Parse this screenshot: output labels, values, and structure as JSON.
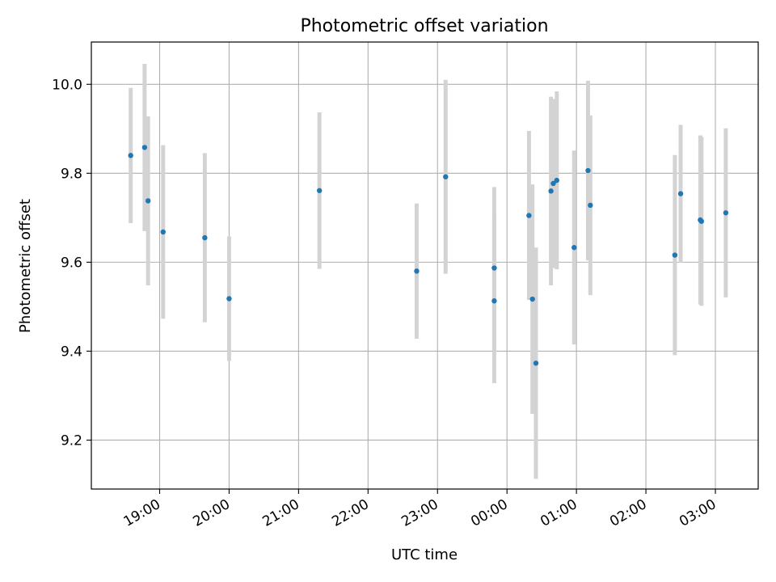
{
  "chart_data": {
    "type": "scatter",
    "title": "Photometric offset variation",
    "xlabel": "UTC time",
    "ylabel": "Photometric offset",
    "x_tick_labels": [
      "19:00",
      "20:00",
      "21:00",
      "22:00",
      "23:00",
      "00:00",
      "01:00",
      "02:00",
      "03:00"
    ],
    "y_tick_labels": [
      "9.2",
      "9.4",
      "9.6",
      "9.8",
      "10.0"
    ],
    "y_ticks": [
      9.2,
      9.4,
      9.6,
      9.8,
      10.0
    ],
    "xlim": [
      "18:01",
      "03:37"
    ],
    "ylim": [
      9.09,
      10.095
    ],
    "grid": true,
    "colors": {
      "point": "#1f77b4",
      "errorbar": "#d3d3d3",
      "grid": "#b0b0b0"
    },
    "points": [
      {
        "t": "18:35",
        "y": 9.84,
        "err": 0.152
      },
      {
        "t": "18:47",
        "y": 9.858,
        "err": 0.188
      },
      {
        "t": "18:50",
        "y": 9.738,
        "err": 0.19
      },
      {
        "t": "19:03",
        "y": 9.668,
        "err": 0.195
      },
      {
        "t": "19:39",
        "y": 9.655,
        "err": 0.19
      },
      {
        "t": "20:00",
        "y": 9.518,
        "err": 0.14
      },
      {
        "t": "21:18",
        "y": 9.761,
        "err": 0.176
      },
      {
        "t": "22:42",
        "y": 9.58,
        "err": 0.152
      },
      {
        "t": "23:07",
        "y": 9.792,
        "err": 0.218
      },
      {
        "t": "23:49",
        "y": 9.513,
        "err": 0.185
      },
      {
        "t": "23:49",
        "y": 9.587,
        "err": 0.182
      },
      {
        "t": "00:19",
        "y": 9.705,
        "err": 0.19
      },
      {
        "t": "00:22",
        "y": 9.517,
        "err": 0.258
      },
      {
        "t": "00:25",
        "y": 9.373,
        "err": 0.26
      },
      {
        "t": "00:38",
        "y": 9.76,
        "err": 0.212
      },
      {
        "t": "00:40",
        "y": 9.777,
        "err": 0.19
      },
      {
        "t": "00:43",
        "y": 9.784,
        "err": 0.2
      },
      {
        "t": "00:58",
        "y": 9.633,
        "err": 0.218
      },
      {
        "t": "01:10",
        "y": 9.806,
        "err": 0.202
      },
      {
        "t": "01:12",
        "y": 9.728,
        "err": 0.202
      },
      {
        "t": "02:25",
        "y": 9.616,
        "err": 0.225
      },
      {
        "t": "02:30",
        "y": 9.754,
        "err": 0.155
      },
      {
        "t": "02:47",
        "y": 9.695,
        "err": 0.19
      },
      {
        "t": "02:48",
        "y": 9.692,
        "err": 0.19
      },
      {
        "t": "03:09",
        "y": 9.711,
        "err": 0.19
      }
    ]
  }
}
